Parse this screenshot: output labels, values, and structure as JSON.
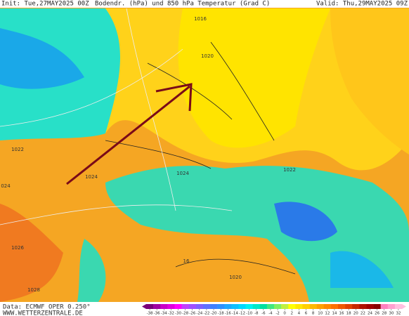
{
  "header": {
    "init": "Init: Tue,27MAY2025 00Z",
    "title": "Bodendr. (hPa) und 850 hPa Temperatur (Grad C)",
    "valid": "Valid: Thu,29MAY2025 09Z"
  },
  "footer": {
    "source": "Data: ECMWF OPER 0.250°",
    "website": "WWW.WETTERZENTRALE.DE"
  },
  "isobar_labels": [
    "1016",
    "1020",
    "1022",
    "1024",
    "1024",
    "024",
    "1026",
    "1028",
    "1020",
    "16",
    "1022"
  ],
  "colorbar": {
    "ticks": [
      -38,
      -36,
      -34,
      -32,
      -30,
      -28,
      -26,
      -24,
      -22,
      -20,
      -18,
      -16,
      -14,
      -12,
      -10,
      -8,
      -6,
      -4,
      -2,
      0,
      2,
      4,
      6,
      8,
      10,
      12,
      14,
      16,
      18,
      20,
      22,
      24,
      26,
      28,
      30,
      32
    ],
    "colors": [
      "#7a007a",
      "#a000a0",
      "#c800c8",
      "#e000e0",
      "#ff00ff",
      "#c040ff",
      "#a050ff",
      "#8060ff",
      "#6070ff",
      "#4080ff",
      "#3090ff",
      "#20a8ff",
      "#10c0ff",
      "#00d8ff",
      "#00f0f0",
      "#00e8c8",
      "#00e0a0",
      "#40e880",
      "#80f060",
      "#c0f040",
      "#ffff00",
      "#ffe800",
      "#ffd000",
      "#ffb800",
      "#ffa000",
      "#ff8800",
      "#ff7000",
      "#f05800",
      "#e04000",
      "#c82800",
      "#b01000",
      "#a00000",
      "#880000",
      "#ff80c0",
      "#ffa0d0",
      "#ffc0e0"
    ]
  }
}
